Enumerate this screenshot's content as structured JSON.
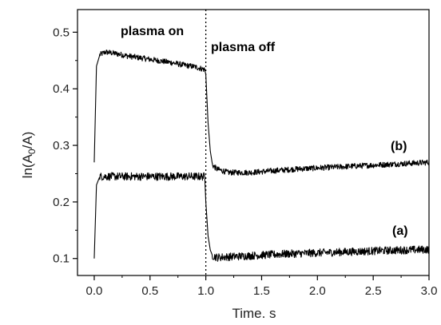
{
  "chart_data": {
    "type": "line",
    "title": "",
    "xlabel": "Time. s",
    "ylabel": "ln(A0/A)",
    "ylabel_parts": {
      "pre": "ln(A",
      "sub": "0",
      "post": "/A)"
    },
    "xlim": [
      -0.15,
      3.0
    ],
    "ylim": [
      0.07,
      0.54
    ],
    "xticks": [
      "0.0",
      "0.5",
      "1.0",
      "1.5",
      "2.0",
      "2.5",
      "3.0"
    ],
    "xtick_values": [
      0.0,
      0.5,
      1.0,
      1.5,
      2.0,
      2.5,
      3.0
    ],
    "yticks": [
      "0.1",
      "0.2",
      "0.3",
      "0.4",
      "0.5"
    ],
    "ytick_values": [
      0.1,
      0.2,
      0.3,
      0.4,
      0.5
    ],
    "grid": false,
    "legend": "none",
    "vline_x": 1.0,
    "annotations": {
      "plasma_on": "plasma on",
      "plasma_off": "plasma off",
      "label_b": "(b)",
      "label_a": "(a)"
    },
    "series": [
      {
        "name": "(b)",
        "x": [
          0.0,
          0.02,
          0.05,
          0.1,
          0.2,
          0.3,
          0.4,
          0.5,
          0.6,
          0.7,
          0.8,
          0.9,
          0.99,
          1.0,
          1.02,
          1.04,
          1.06,
          1.1,
          1.2,
          1.4,
          1.6,
          1.8,
          2.0,
          2.2,
          2.4,
          2.6,
          2.8,
          3.0
        ],
        "y": [
          0.27,
          0.44,
          0.46,
          0.465,
          0.462,
          0.458,
          0.455,
          0.452,
          0.449,
          0.446,
          0.442,
          0.439,
          0.434,
          0.425,
          0.34,
          0.29,
          0.265,
          0.258,
          0.252,
          0.252,
          0.255,
          0.258,
          0.26,
          0.262,
          0.264,
          0.266,
          0.268,
          0.27
        ],
        "noise": 0.005
      },
      {
        "name": "(a)",
        "x": [
          0.0,
          0.02,
          0.05,
          0.1,
          0.3,
          0.5,
          0.7,
          0.9,
          0.99,
          1.0,
          1.02,
          1.04,
          1.06,
          1.1,
          1.3,
          1.5,
          1.7,
          2.0,
          2.3,
          2.6,
          3.0
        ],
        "y": [
          0.1,
          0.23,
          0.245,
          0.245,
          0.245,
          0.245,
          0.245,
          0.245,
          0.245,
          0.2,
          0.14,
          0.115,
          0.105,
          0.102,
          0.104,
          0.106,
          0.108,
          0.11,
          0.112,
          0.114,
          0.116
        ],
        "noise": 0.007
      }
    ]
  }
}
